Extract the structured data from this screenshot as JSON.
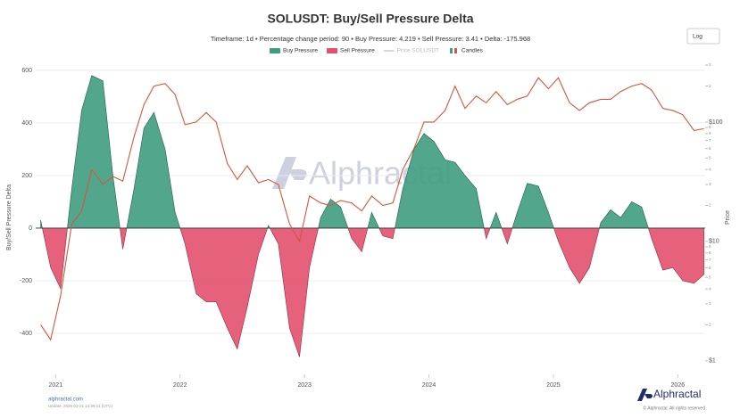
{
  "chart_data": {
    "type": "area",
    "title": "SOLUSDT: Buy/Sell Pressure Delta",
    "subtitle": "Timeframe: 1d • Percentage change period: 90 • Buy Pressure: 4.219 • Sell Pressure: 3.41 • Delta: -175.968",
    "ylabel": "Buy/Sell Pressure Delta",
    "y2label": "Price",
    "legend": [
      {
        "name": "Buy Pressure",
        "color": "#3f9c80",
        "visible": true
      },
      {
        "name": "Sell Pressure",
        "color": "#e3506d",
        "visible": true
      },
      {
        "name": "Price SOLUSDT",
        "color": "#c8c8c8",
        "visible": false
      },
      {
        "name": "Candles",
        "color": "#d0583c",
        "visible": true
      }
    ],
    "x": [
      2020.88,
      2020.96,
      2021.04,
      2021.13,
      2021.21,
      2021.29,
      2021.38,
      2021.46,
      2021.54,
      2021.63,
      2021.71,
      2021.79,
      2021.88,
      2021.96,
      2022.04,
      2022.13,
      2022.21,
      2022.29,
      2022.38,
      2022.46,
      2022.54,
      2022.63,
      2022.71,
      2022.79,
      2022.88,
      2022.96,
      2023.04,
      2023.13,
      2023.21,
      2023.29,
      2023.38,
      2023.46,
      2023.54,
      2023.63,
      2023.71,
      2023.79,
      2023.88,
      2023.96,
      2024.04,
      2024.13,
      2024.21,
      2024.29,
      2024.38,
      2024.46,
      2024.54,
      2024.63,
      2024.71,
      2024.79,
      2024.88,
      2024.96,
      2025.04,
      2025.13,
      2025.21,
      2025.29,
      2025.38,
      2025.46,
      2025.54,
      2025.63,
      2025.71,
      2025.79,
      2025.88,
      2025.96,
      2026.04,
      2026.13,
      2026.21
    ],
    "values": [
      30,
      -150,
      -230,
      150,
      450,
      580,
      560,
      200,
      -80,
      150,
      380,
      440,
      300,
      60,
      -60,
      -250,
      -280,
      -280,
      -380,
      -460,
      -300,
      -100,
      10,
      -60,
      -380,
      -490,
      -150,
      40,
      110,
      80,
      -40,
      -90,
      60,
      -30,
      -40,
      150,
      300,
      360,
      330,
      260,
      250,
      200,
      150,
      -40,
      60,
      -60,
      60,
      170,
      160,
      60,
      -50,
      -150,
      -210,
      -150,
      20,
      70,
      40,
      100,
      80,
      -40,
      -160,
      -150,
      -200,
      -210,
      -176
    ],
    "price": {
      "axis": "y2",
      "values": [
        2.0,
        1.5,
        3.5,
        14,
        18,
        40,
        30,
        35,
        32,
        75,
        140,
        200,
        210,
        170,
        95,
        100,
        120,
        100,
        45,
        33,
        43,
        31,
        33,
        30,
        14,
        10,
        24,
        21,
        20,
        22,
        21,
        18,
        24,
        20,
        21,
        40,
        60,
        100,
        100,
        125,
        200,
        130,
        165,
        145,
        180,
        140,
        155,
        165,
        235,
        190,
        235,
        145,
        125,
        145,
        155,
        155,
        180,
        200,
        210,
        185,
        130,
        125,
        115,
        85,
        88
      ]
    },
    "xlim": [
      2020.84,
      2026.22
    ],
    "xticks": [
      2021,
      2022,
      2023,
      2024,
      2025,
      2026
    ],
    "ylim": [
      -556,
      637
    ],
    "yticks": [
      -400,
      -200,
      0,
      200,
      400,
      600
    ],
    "y2lim": [
      0.77,
      327
    ],
    "log_y2": true,
    "y2ticks": [
      {
        "value": 1,
        "label": "$1"
      },
      2,
      3,
      4,
      5,
      6,
      7,
      8,
      9,
      {
        "value": 10,
        "label": "$10"
      },
      {
        "value": 20,
        "label": "2"
      },
      {
        "value": 30,
        "label": "3"
      },
      {
        "value": 40,
        "label": "4"
      },
      {
        "value": 50,
        "label": "5"
      },
      {
        "value": 60,
        "label": "6"
      },
      {
        "value": 70,
        "label": "7"
      },
      {
        "value": 80,
        "label": "8"
      },
      {
        "value": 90,
        "label": "9"
      },
      {
        "value": 100,
        "label": "$100"
      },
      {
        "value": 200,
        "label": "2"
      },
      {
        "value": 300,
        "label": "3"
      }
    ],
    "grid": true
  },
  "controls": {
    "scale": "Log"
  },
  "branding": {
    "watermark": "Alphractal",
    "site": "alphractal.com",
    "update": "Update: 2026-03-21 14:56:11 (UTC)",
    "logo": "Alphractal",
    "copyright": "© Alphractal. All rights reserved"
  }
}
